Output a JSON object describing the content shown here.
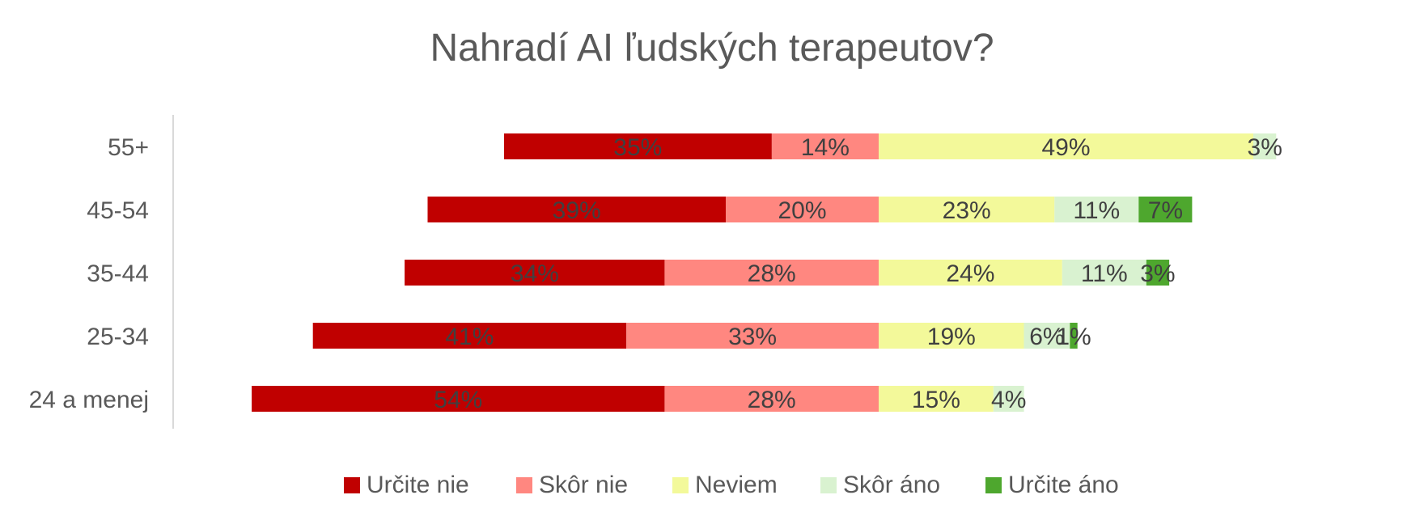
{
  "chart_data": {
    "type": "bar",
    "orientation": "horizontal",
    "layout": "diverging-stacked",
    "title": "Nahradí AI ľudských terapeutov?",
    "categories": [
      "55+",
      "45-54",
      "35-44",
      "25-34",
      "24 a menej"
    ],
    "series": [
      {
        "name": "Určite nie",
        "side": "negative",
        "color": "#C00000",
        "values": [
          35,
          39,
          34,
          41,
          54
        ],
        "labels": [
          "35%",
          "39%",
          "34%",
          "41%",
          "54%"
        ]
      },
      {
        "name": "Skôr nie",
        "side": "negative",
        "color": "#FF8780",
        "values": [
          14,
          20,
          28,
          33,
          28
        ],
        "labels": [
          "14%",
          "20%",
          "28%",
          "33%",
          "28%"
        ]
      },
      {
        "name": "Neviem",
        "side": "positive",
        "color": "#F3F99A",
        "values": [
          49,
          23,
          24,
          19,
          15
        ],
        "labels": [
          "49%",
          "23%",
          "24%",
          "19%",
          "15%"
        ]
      },
      {
        "name": "Skôr áno",
        "side": "positive",
        "color": "#D9F2D0",
        "values": [
          3,
          11,
          11,
          6,
          4
        ],
        "labels": [
          "3%",
          "11%",
          "11%",
          "6%",
          "4%"
        ]
      },
      {
        "name": "Určite áno",
        "side": "positive",
        "color": "#4EA72E",
        "values": [
          0,
          7,
          3,
          1,
          0
        ],
        "labels": [
          "",
          "7%",
          "3%",
          "1%",
          ""
        ]
      }
    ],
    "legend_position": "bottom",
    "grid": false
  }
}
